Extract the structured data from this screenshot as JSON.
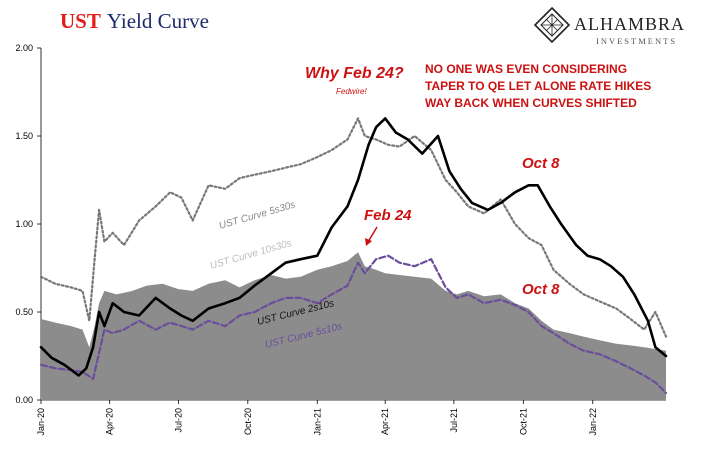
{
  "header": {
    "title_prefix": "UST",
    "title_rest": "Yield Curve",
    "brand_name": "ALHAMBRA",
    "brand_sub": "INVESTMENTS"
  },
  "annotations": {
    "why_title": "Why Feb 24?",
    "why_sub": "Fedwire!",
    "note_lines": [
      "NO ONE WAS EVEN CONSIDERING",
      "TAPER TO QE LET ALONE RATE HIKES",
      "WAY BACK WHEN CURVES SHIFTED"
    ],
    "feb24_label": "Feb 24",
    "oct8_upper": "Oct 8",
    "oct8_lower": "Oct 8"
  },
  "colors": {
    "title_red": "#e31d1a",
    "title_navy": "#1f2a6b",
    "annotation_red": "#cc1111",
    "area_fill": "#8c8c8c",
    "line_2s10s": "#000000",
    "line_5s30s": "#777777",
    "line_5s10s": "#6b4e9b"
  },
  "chart_data": {
    "type": "line",
    "title": "UST Yield Curve",
    "xlabel": "",
    "ylabel": "",
    "ylim": [
      0,
      2.0
    ],
    "xlim": [
      "2020-01-01",
      "2022-04-08"
    ],
    "yticks": [
      "0.00",
      "0.50",
      "1.00",
      "1.50",
      "2.00"
    ],
    "xticks": [
      {
        "label": "Jan-20",
        "date": "2020-01-01"
      },
      {
        "label": "Apr-20",
        "date": "2020-04-01"
      },
      {
        "label": "Jul-20",
        "date": "2020-07-01"
      },
      {
        "label": "Oct-20",
        "date": "2020-10-01"
      },
      {
        "label": "Jan-21",
        "date": "2021-01-01"
      },
      {
        "label": "Apr-21",
        "date": "2021-04-01"
      },
      {
        "label": "Jul-21",
        "date": "2021-07-01"
      },
      {
        "label": "Oct-21",
        "date": "2021-10-01"
      },
      {
        "label": "Jan-22",
        "date": "2022-01-01"
      }
    ],
    "series": [
      {
        "name": "UST Curve 10s30s",
        "style": "area",
        "x": [
          "2020-01-01",
          "2020-01-20",
          "2020-02-10",
          "2020-02-25",
          "2020-03-05",
          "2020-03-12",
          "2020-03-18",
          "2020-03-25",
          "2020-04-10",
          "2020-05-01",
          "2020-05-20",
          "2020-06-10",
          "2020-07-01",
          "2020-07-20",
          "2020-08-10",
          "2020-09-01",
          "2020-09-20",
          "2020-10-10",
          "2020-11-01",
          "2020-11-20",
          "2020-12-10",
          "2021-01-01",
          "2021-01-20",
          "2021-02-10",
          "2021-02-24",
          "2021-03-05",
          "2021-03-20",
          "2021-04-01",
          "2021-04-20",
          "2021-05-10",
          "2021-06-01",
          "2021-06-20",
          "2021-07-05",
          "2021-07-20",
          "2021-08-10",
          "2021-09-01",
          "2021-09-20",
          "2021-10-08",
          "2021-10-25",
          "2021-11-10",
          "2021-12-01",
          "2021-12-20",
          "2022-01-10",
          "2022-02-01",
          "2022-02-20",
          "2022-03-10",
          "2022-03-25",
          "2022-04-08"
        ],
        "y": [
          0.46,
          0.44,
          0.42,
          0.4,
          0.3,
          0.42,
          0.55,
          0.62,
          0.6,
          0.62,
          0.65,
          0.66,
          0.63,
          0.62,
          0.66,
          0.68,
          0.64,
          0.68,
          0.71,
          0.69,
          0.7,
          0.74,
          0.76,
          0.79,
          0.84,
          0.76,
          0.74,
          0.72,
          0.71,
          0.7,
          0.69,
          0.62,
          0.6,
          0.62,
          0.59,
          0.6,
          0.55,
          0.52,
          0.45,
          0.4,
          0.38,
          0.36,
          0.34,
          0.32,
          0.31,
          0.3,
          0.29,
          0.28
        ]
      },
      {
        "name": "UST Curve 5s30s",
        "style": "dotted",
        "x": [
          "2020-01-01",
          "2020-01-20",
          "2020-02-10",
          "2020-02-25",
          "2020-03-05",
          "2020-03-12",
          "2020-03-18",
          "2020-03-25",
          "2020-04-05",
          "2020-04-20",
          "2020-05-10",
          "2020-06-01",
          "2020-06-20",
          "2020-07-05",
          "2020-07-20",
          "2020-08-10",
          "2020-09-01",
          "2020-09-20",
          "2020-10-10",
          "2020-11-01",
          "2020-11-20",
          "2020-12-10",
          "2021-01-01",
          "2021-01-20",
          "2021-02-10",
          "2021-02-24",
          "2021-03-05",
          "2021-03-20",
          "2021-04-05",
          "2021-04-20",
          "2021-05-10",
          "2021-06-01",
          "2021-06-20",
          "2021-07-05",
          "2021-07-20",
          "2021-08-10",
          "2021-09-01",
          "2021-09-20",
          "2021-10-08",
          "2021-10-25",
          "2021-11-10",
          "2021-12-01",
          "2021-12-20",
          "2022-01-10",
          "2022-02-01",
          "2022-02-20",
          "2022-03-10",
          "2022-03-25",
          "2022-04-08"
        ],
        "y": [
          0.7,
          0.66,
          0.64,
          0.62,
          0.45,
          0.8,
          1.08,
          0.9,
          0.95,
          0.88,
          1.02,
          1.1,
          1.18,
          1.15,
          1.02,
          1.22,
          1.2,
          1.26,
          1.28,
          1.3,
          1.32,
          1.34,
          1.38,
          1.42,
          1.48,
          1.6,
          1.5,
          1.48,
          1.45,
          1.44,
          1.5,
          1.42,
          1.25,
          1.18,
          1.1,
          1.06,
          1.14,
          1.0,
          0.92,
          0.88,
          0.74,
          0.66,
          0.6,
          0.56,
          0.52,
          0.46,
          0.4,
          0.5,
          0.36
        ]
      },
      {
        "name": "UST Curve 2s10s",
        "style": "solid",
        "x": [
          "2020-01-01",
          "2020-01-15",
          "2020-02-01",
          "2020-02-20",
          "2020-03-01",
          "2020-03-10",
          "2020-03-18",
          "2020-03-25",
          "2020-04-05",
          "2020-04-20",
          "2020-05-10",
          "2020-06-01",
          "2020-06-20",
          "2020-07-05",
          "2020-07-20",
          "2020-08-10",
          "2020-09-01",
          "2020-09-20",
          "2020-10-10",
          "2020-11-01",
          "2020-11-20",
          "2020-12-10",
          "2021-01-01",
          "2021-01-20",
          "2021-02-10",
          "2021-02-24",
          "2021-03-10",
          "2021-03-20",
          "2021-04-01",
          "2021-04-15",
          "2021-05-01",
          "2021-05-20",
          "2021-06-10",
          "2021-06-25",
          "2021-07-10",
          "2021-07-25",
          "2021-08-15",
          "2021-09-01",
          "2021-09-20",
          "2021-10-08",
          "2021-10-20",
          "2021-11-05",
          "2021-11-20",
          "2021-12-10",
          "2021-12-25",
          "2022-01-10",
          "2022-01-25",
          "2022-02-10",
          "2022-02-25",
          "2022-03-15",
          "2022-03-25",
          "2022-04-08"
        ],
        "y": [
          0.3,
          0.24,
          0.2,
          0.14,
          0.18,
          0.3,
          0.5,
          0.42,
          0.55,
          0.5,
          0.48,
          0.58,
          0.52,
          0.48,
          0.45,
          0.52,
          0.55,
          0.58,
          0.65,
          0.72,
          0.78,
          0.8,
          0.82,
          0.98,
          1.1,
          1.25,
          1.45,
          1.55,
          1.6,
          1.52,
          1.48,
          1.4,
          1.5,
          1.3,
          1.2,
          1.12,
          1.08,
          1.12,
          1.18,
          1.22,
          1.22,
          1.1,
          1.0,
          0.88,
          0.82,
          0.8,
          0.76,
          0.7,
          0.6,
          0.45,
          0.3,
          0.25
        ]
      },
      {
        "name": "UST Curve 5s10s",
        "style": "dashed",
        "x": [
          "2020-01-01",
          "2020-01-20",
          "2020-02-10",
          "2020-02-25",
          "2020-03-10",
          "2020-03-25",
          "2020-04-05",
          "2020-04-20",
          "2020-05-10",
          "2020-06-01",
          "2020-06-20",
          "2020-07-05",
          "2020-07-20",
          "2020-08-10",
          "2020-09-01",
          "2020-09-20",
          "2020-10-10",
          "2020-11-01",
          "2020-11-20",
          "2020-12-10",
          "2021-01-01",
          "2021-01-20",
          "2021-02-10",
          "2021-02-24",
          "2021-03-05",
          "2021-03-20",
          "2021-04-05",
          "2021-04-20",
          "2021-05-10",
          "2021-06-01",
          "2021-06-20",
          "2021-07-05",
          "2021-07-20",
          "2021-08-10",
          "2021-09-01",
          "2021-09-20",
          "2021-10-08",
          "2021-10-25",
          "2021-11-10",
          "2021-12-01",
          "2021-12-20",
          "2022-01-10",
          "2022-02-01",
          "2022-02-20",
          "2022-03-10",
          "2022-03-25",
          "2022-04-08"
        ],
        "y": [
          0.2,
          0.18,
          0.17,
          0.16,
          0.12,
          0.4,
          0.38,
          0.4,
          0.45,
          0.4,
          0.44,
          0.42,
          0.4,
          0.45,
          0.42,
          0.48,
          0.5,
          0.55,
          0.58,
          0.58,
          0.55,
          0.6,
          0.65,
          0.78,
          0.72,
          0.8,
          0.82,
          0.78,
          0.76,
          0.8,
          0.64,
          0.58,
          0.6,
          0.55,
          0.57,
          0.54,
          0.5,
          0.42,
          0.38,
          0.32,
          0.28,
          0.26,
          0.22,
          0.18,
          0.14,
          0.1,
          0.04
        ]
      }
    ],
    "series_labels": [
      {
        "text": "UST Curve 5s30s",
        "color": "#888888"
      },
      {
        "text": "UST Curve 10s30s",
        "color": "#bdbdbd"
      },
      {
        "text": "UST Curve 2s10s",
        "color": "#111111"
      },
      {
        "text": "UST Curve 5s10s",
        "color": "#6b4e9b"
      }
    ],
    "grid": false,
    "legend": "none"
  }
}
